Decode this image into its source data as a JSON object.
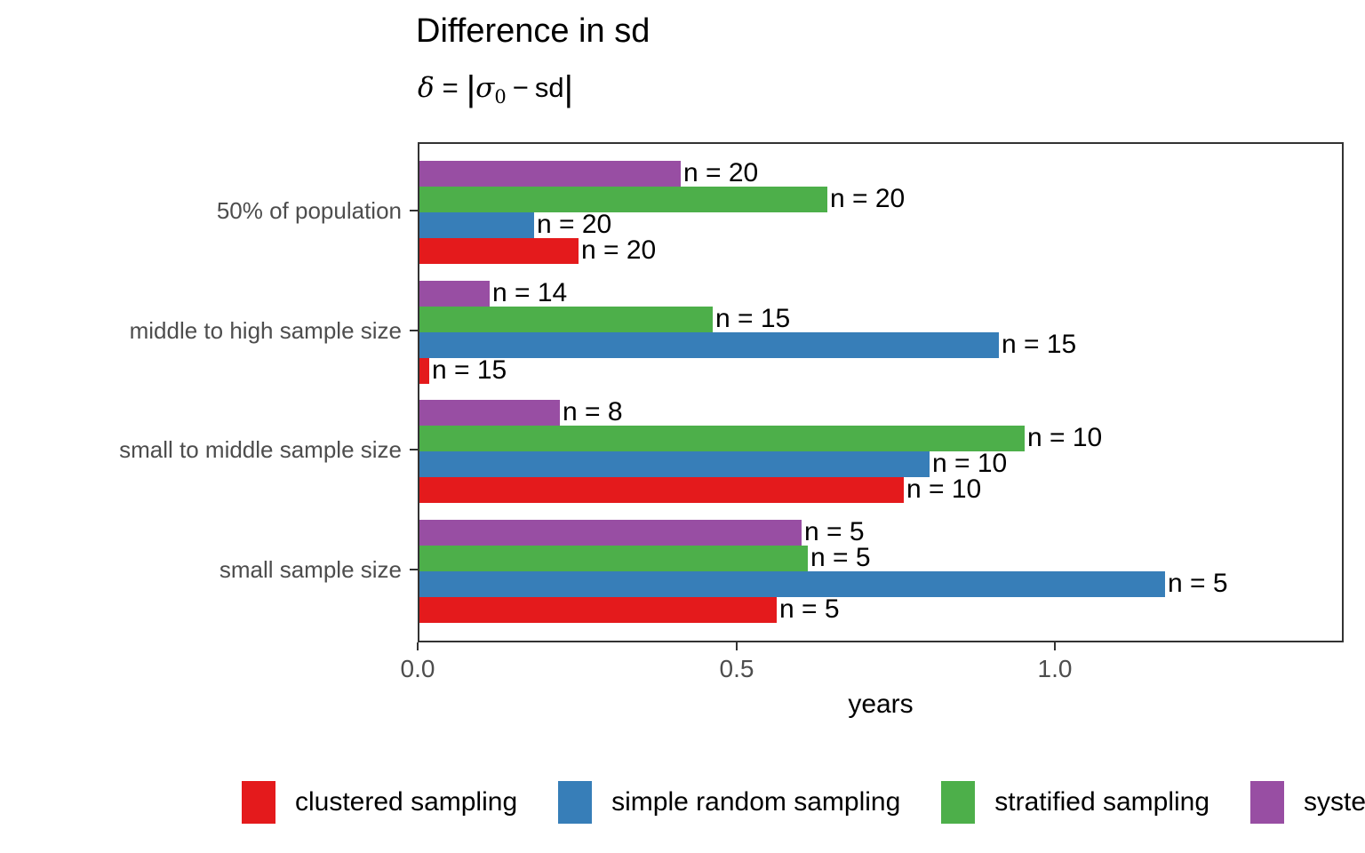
{
  "chart_data": {
    "type": "bar",
    "orientation": "horizontal",
    "title": "Difference in sd",
    "subtitle_formula": {
      "delta": "δ",
      "eq": "=",
      "bar": "|",
      "sigma": "σ",
      "sub": "0",
      "minus": "−",
      "sd": "sd"
    },
    "xlabel": "years",
    "xlim": [
      0,
      1.45
    ],
    "grid": false,
    "x_ticks": [
      {
        "value": 0.0,
        "label": "0.0"
      },
      {
        "value": 0.5,
        "label": "0.5"
      },
      {
        "value": 1.0,
        "label": "1.0"
      }
    ],
    "categories": [
      "50% of population",
      "middle to high sample size",
      "small to middle sample size",
      "small sample size"
    ],
    "series": [
      {
        "name": "systematic sampling",
        "color": "#984EA3",
        "values": [
          0.41,
          0.11,
          0.22,
          0.6
        ],
        "bar_labels": [
          "n = 20",
          "n = 14",
          "n = 8",
          "n = 5"
        ]
      },
      {
        "name": "stratified sampling",
        "color": "#4DAF4A",
        "values": [
          0.64,
          0.46,
          0.95,
          0.61
        ],
        "bar_labels": [
          "n = 20",
          "n = 15",
          "n = 10",
          "n = 5"
        ]
      },
      {
        "name": "simple random sampling",
        "color": "#377EB8",
        "values": [
          0.18,
          0.91,
          0.8,
          1.17
        ],
        "bar_labels": [
          "n = 20",
          "n = 15",
          "n = 10",
          "n = 5"
        ]
      },
      {
        "name": "clustered sampling",
        "color": "#E41A1C",
        "values": [
          0.25,
          0.015,
          0.76,
          0.56
        ],
        "bar_labels": [
          "n = 20",
          "n = 15",
          "n = 10",
          "n = 5"
        ]
      }
    ],
    "legend": {
      "position": "bottom",
      "items": [
        {
          "label": "clustered sampling",
          "color": "#E41A1C"
        },
        {
          "label": "simple random sampling",
          "color": "#377EB8"
        },
        {
          "label": "stratified sampling",
          "color": "#4DAF4A"
        },
        {
          "label": "systematic sampling",
          "color": "#984EA3"
        }
      ]
    }
  }
}
